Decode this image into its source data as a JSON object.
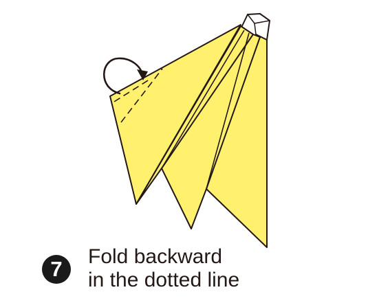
{
  "step": {
    "number": "7"
  },
  "instruction": {
    "line1": "Fold backward",
    "line2": "in the dotted line"
  },
  "icons": {
    "figure": "folded-paper-flower-diagram",
    "arrow": "curved-arrow-fold-backward-icon"
  },
  "colors": {
    "paper": "#FFF06E",
    "outline": "#231815",
    "background": "#FFFFFF",
    "paper_back": "#FFFFFF"
  }
}
